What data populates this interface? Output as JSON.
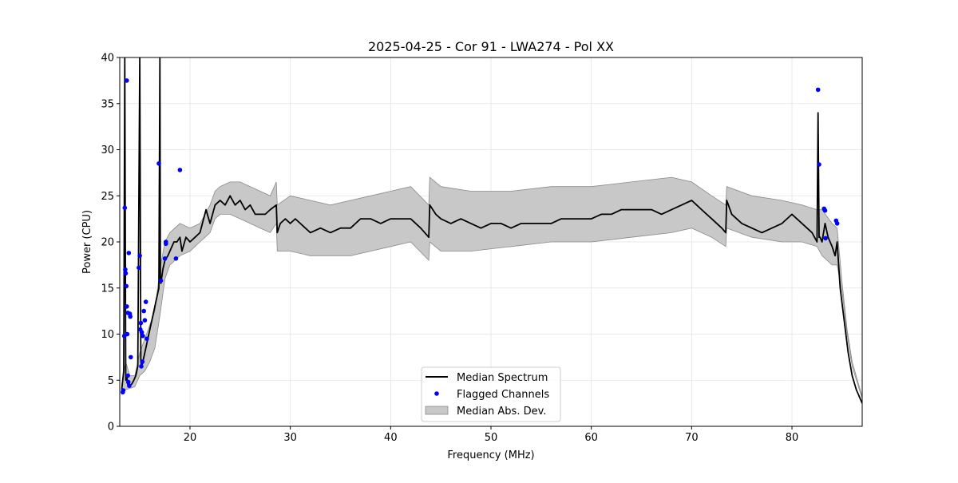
{
  "chart_data": {
    "type": "line",
    "title": "2025-04-25 - Cor 91 - LWA274 - Pol XX",
    "xlabel": "Frequency (MHz)",
    "ylabel": "Power (CPU)",
    "xlim": [
      13.0,
      87.0
    ],
    "ylim": [
      0,
      40
    ],
    "xticks": [
      20,
      30,
      40,
      50,
      60,
      70,
      80
    ],
    "yticks": [
      0,
      5,
      10,
      15,
      20,
      25,
      30,
      35,
      40
    ],
    "grid": true,
    "legend_position": "lower-center",
    "colors": {
      "median": "#000000",
      "flagged": "#0000ff",
      "mad_fill": "#c8c8c8",
      "mad_edge": "#8a8a8a"
    },
    "legend": [
      "Median Spectrum",
      "Flagged Channels",
      "Median Abs. Dev."
    ],
    "series": [
      {
        "name": "Median Spectrum",
        "kind": "line",
        "x": [
          13.2,
          13.4,
          13.5,
          13.6,
          13.7,
          13.8,
          13.9,
          14.0,
          14.2,
          14.4,
          14.6,
          14.8,
          15.0,
          15.1,
          15.2,
          15.4,
          15.6,
          15.8,
          16.0,
          16.3,
          16.6,
          16.9,
          17.0,
          17.05,
          17.1,
          17.3,
          17.5,
          17.8,
          18.0,
          18.4,
          18.7,
          19.0,
          19.2,
          19.6,
          20.0,
          20.5,
          21.0,
          21.6,
          22.0,
          22.5,
          23.0,
          23.5,
          24.0,
          24.5,
          25.0,
          25.5,
          26.0,
          26.5,
          27.0,
          27.5,
          28.0,
          28.6,
          28.7,
          29.0,
          29.5,
          30.0,
          30.5,
          31.0,
          31.5,
          32.0,
          33.0,
          34.0,
          35.0,
          36.0,
          37.0,
          38.0,
          39.0,
          40.0,
          41.0,
          42.0,
          43.0,
          43.8,
          43.9,
          44.5,
          45.0,
          46.0,
          47.0,
          48.0,
          49.0,
          50.0,
          51.0,
          52.0,
          53.0,
          54.0,
          55.0,
          56.0,
          57.0,
          58.0,
          59.0,
          60.0,
          61.0,
          62.0,
          63.0,
          64.0,
          65.0,
          66.0,
          67.0,
          68.0,
          69.0,
          70.0,
          71.0,
          72.0,
          73.0,
          73.4,
          73.5,
          74.0,
          75.0,
          76.0,
          77.0,
          78.0,
          79.0,
          80.0,
          81.0,
          82.0,
          82.5,
          82.6,
          82.7,
          82.8,
          83.0,
          83.3,
          83.6,
          84.0,
          84.3,
          84.5,
          84.8,
          85.2,
          85.6,
          86.0,
          86.4,
          86.8,
          87.0
        ],
        "y": [
          4.0,
          6.0,
          40.0,
          5.0,
          5.5,
          4.5,
          4.6,
          4.4,
          4.6,
          5.0,
          5.5,
          6.5,
          40.0,
          7.0,
          6.5,
          7.5,
          8.5,
          9.5,
          10.5,
          12.0,
          13.5,
          15.0,
          40.0,
          16.0,
          15.5,
          17.0,
          18.0,
          18.5,
          19.0,
          20.0,
          20.0,
          20.5,
          19.0,
          20.5,
          20.0,
          20.5,
          21.0,
          23.5,
          22.0,
          24.0,
          24.5,
          24.0,
          25.0,
          24.0,
          24.5,
          23.5,
          24.0,
          23.0,
          23.0,
          23.0,
          23.5,
          24.0,
          21.0,
          22.0,
          22.5,
          22.0,
          22.5,
          22.0,
          21.5,
          21.0,
          21.5,
          21.0,
          21.5,
          21.5,
          22.5,
          22.5,
          22.0,
          22.5,
          22.5,
          22.5,
          21.5,
          20.5,
          24.0,
          23.0,
          22.5,
          22.0,
          22.5,
          22.0,
          21.5,
          22.0,
          22.0,
          21.5,
          22.0,
          22.0,
          22.0,
          22.0,
          22.5,
          22.5,
          22.5,
          22.5,
          23.0,
          23.0,
          23.5,
          23.5,
          23.5,
          23.5,
          23.0,
          23.5,
          24.0,
          24.5,
          23.5,
          22.5,
          21.5,
          21.0,
          24.5,
          23.0,
          22.0,
          21.5,
          21.0,
          21.5,
          22.0,
          23.0,
          22.0,
          21.0,
          20.0,
          34.0,
          20.5,
          20.5,
          20.0,
          22.0,
          20.5,
          19.5,
          18.5,
          20.0,
          15.0,
          11.5,
          8.0,
          5.5,
          4.0,
          3.0,
          2.5
        ]
      },
      {
        "name": "Flagged Channels",
        "kind": "scatter",
        "x": [
          13.3,
          13.35,
          13.45,
          13.5,
          13.55,
          13.6,
          13.65,
          13.7,
          13.7,
          13.75,
          13.8,
          13.8,
          13.85,
          13.9,
          13.95,
          14.0,
          14.05,
          14.1,
          14.9,
          15.0,
          15.05,
          15.1,
          15.15,
          15.2,
          15.25,
          15.3,
          15.4,
          15.5,
          15.6,
          15.7,
          16.9,
          17.1,
          17.5,
          17.6,
          17.6,
          18.6,
          19.0,
          82.6,
          82.7,
          83.2,
          83.3,
          83.35,
          84.4,
          84.5
        ],
        "y": [
          3.7,
          3.9,
          9.8,
          23.7,
          17.0,
          16.6,
          15.2,
          37.5,
          13.0,
          10.0,
          12.3,
          5.5,
          4.8,
          18.8,
          4.4,
          12.2,
          11.9,
          7.5,
          17.2,
          18.5,
          10.5,
          11.2,
          6.5,
          10.2,
          7.0,
          9.8,
          12.5,
          11.5,
          13.5,
          9.5,
          28.5,
          15.8,
          18.2,
          20.0,
          19.8,
          18.2,
          27.8,
          36.5,
          28.4,
          23.6,
          23.4,
          20.4,
          22.3,
          22.0
        ]
      },
      {
        "name": "Median Abs. Dev.",
        "kind": "band",
        "x": [
          13.2,
          13.6,
          14.0,
          14.5,
          15.0,
          15.5,
          16.0,
          16.5,
          17.0,
          17.5,
          18.0,
          19.0,
          20.0,
          21.0,
          22.0,
          22.5,
          23.0,
          24.0,
          25.0,
          26.0,
          27.0,
          28.0,
          28.6,
          28.7,
          30.0,
          32.0,
          34.0,
          36.0,
          38.0,
          40.0,
          42.0,
          43.8,
          43.9,
          45.0,
          48.0,
          52.0,
          56.0,
          60.0,
          64.0,
          68.0,
          70.0,
          72.0,
          73.4,
          73.5,
          76.0,
          79.0,
          81.0,
          82.5,
          83.0,
          84.0,
          84.5,
          85.0,
          85.5,
          86.0,
          87.0
        ],
        "lower": [
          3.5,
          4.0,
          4.1,
          4.3,
          5.5,
          6.0,
          7.0,
          8.5,
          12.0,
          16.0,
          17.5,
          18.5,
          19.0,
          20.0,
          21.0,
          22.5,
          23.0,
          23.0,
          22.5,
          22.0,
          21.5,
          21.0,
          22.0,
          19.0,
          19.0,
          18.5,
          18.5,
          18.5,
          19.0,
          19.5,
          20.0,
          18.0,
          20.0,
          19.0,
          19.0,
          19.5,
          20.0,
          20.0,
          20.5,
          21.0,
          21.5,
          20.5,
          19.5,
          21.5,
          20.5,
          20.0,
          20.0,
          19.5,
          18.5,
          17.5,
          17.5,
          14.5,
          10.0,
          6.5,
          3.0
        ],
        "upper": [
          4.5,
          7.0,
          5.5,
          5.5,
          8.0,
          9.5,
          11.0,
          12.5,
          17.0,
          20.0,
          21.0,
          22.0,
          21.5,
          22.0,
          24.0,
          25.5,
          26.0,
          26.5,
          26.5,
          26.0,
          25.5,
          25.0,
          26.5,
          24.0,
          25.0,
          24.5,
          24.0,
          24.5,
          25.0,
          25.5,
          26.0,
          24.0,
          27.0,
          26.0,
          25.5,
          25.5,
          26.0,
          26.0,
          26.5,
          27.0,
          26.5,
          25.0,
          24.0,
          26.0,
          25.0,
          24.5,
          24.0,
          23.5,
          23.5,
          22.0,
          21.5,
          15.5,
          10.5,
          7.0,
          3.2
        ]
      }
    ]
  }
}
